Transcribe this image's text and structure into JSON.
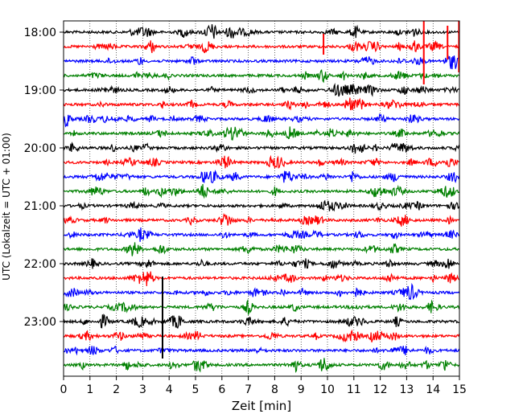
{
  "chart_data": {
    "type": "line",
    "title": "",
    "xlabel": "Zeit  [min]",
    "ylabel": "UTC (Lokalzeit = UTC + 01:00)",
    "xlim": [
      0,
      15
    ],
    "x_ticks": [
      "0",
      "1",
      "2",
      "3",
      "4",
      "5",
      "6",
      "7",
      "8",
      "9",
      "10",
      "11",
      "12",
      "13",
      "14",
      "15"
    ],
    "y_ticks": [
      "18:00",
      "19:00",
      "20:00",
      "21:00",
      "22:00",
      "23:00"
    ],
    "grid": "vertical dotted",
    "trace_interval_minutes": 15,
    "color_cycle": [
      "#000000",
      "#ff0000",
      "#0000ff",
      "#008000"
    ],
    "series": [
      {
        "start": "18:00",
        "color": "#000000"
      },
      {
        "start": "18:15",
        "color": "#ff0000"
      },
      {
        "start": "18:30",
        "color": "#0000ff"
      },
      {
        "start": "18:45",
        "color": "#008000"
      },
      {
        "start": "19:00",
        "color": "#000000"
      },
      {
        "start": "19:15",
        "color": "#ff0000"
      },
      {
        "start": "19:30",
        "color": "#0000ff"
      },
      {
        "start": "19:45",
        "color": "#008000"
      },
      {
        "start": "20:00",
        "color": "#000000"
      },
      {
        "start": "20:15",
        "color": "#ff0000"
      },
      {
        "start": "20:30",
        "color": "#0000ff"
      },
      {
        "start": "20:45",
        "color": "#008000"
      },
      {
        "start": "21:00",
        "color": "#000000"
      },
      {
        "start": "21:15",
        "color": "#ff0000"
      },
      {
        "start": "21:30",
        "color": "#0000ff"
      },
      {
        "start": "21:45",
        "color": "#008000"
      },
      {
        "start": "22:00",
        "color": "#000000"
      },
      {
        "start": "22:15",
        "color": "#ff0000"
      },
      {
        "start": "22:30",
        "color": "#0000ff"
      },
      {
        "start": "22:45",
        "color": "#008000"
      },
      {
        "start": "23:00",
        "color": "#000000"
      },
      {
        "start": "23:15",
        "color": "#ff0000"
      },
      {
        "start": "23:30",
        "color": "#0000ff"
      },
      {
        "start": "23:45",
        "color": "#008000"
      }
    ],
    "spikes": [
      {
        "trace": "18:15",
        "minute": 9.85,
        "color": "#ff0000"
      },
      {
        "trace": "18:15",
        "minute": 13.65,
        "color": "#ff0000"
      },
      {
        "trace": "18:15",
        "minute": 14.55,
        "color": "#ff0000"
      },
      {
        "trace": "18:15",
        "minute": 14.98,
        "color": "#ff0000"
      },
      {
        "trace": "23:00",
        "minute": 3.75,
        "color": "#000000"
      }
    ]
  }
}
